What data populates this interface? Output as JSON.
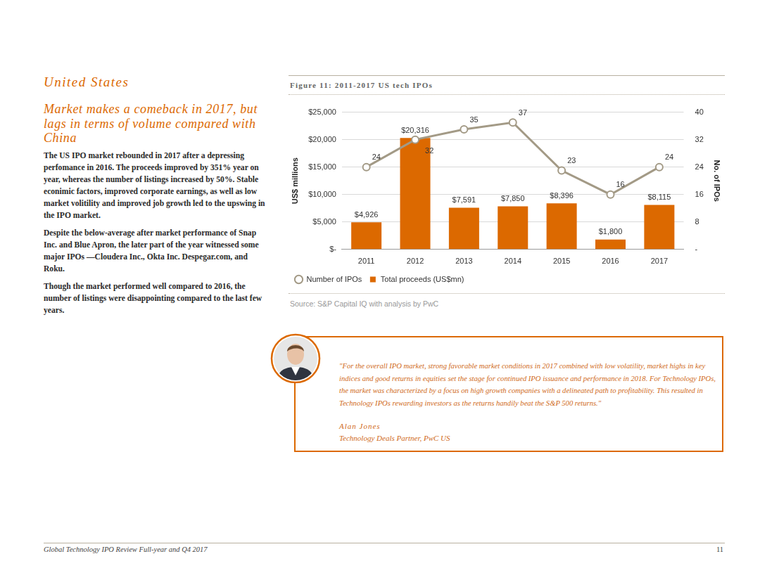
{
  "section": {
    "title": "United States",
    "headline": "Market makes a comeback in 2017, but lags in terms of volume compared with China",
    "paragraphs": [
      "The US IPO market rebounded in 2017 after a depressing perfomance in 2016. The proceeds improved by 351% year on year, whereas the number of listings increased by 50%. Stable econimic factors, improved corporate earnings, as well as low market volitility and improved job growth led to the upswing in the IPO market.",
      "Despite the below-average after market performance of Snap Inc. and Blue Apron, the later part of the year witnessed some major IPOs —Cloudera Inc., Okta Inc. Despegar.com, and Roku.",
      "Though the market performed well compared to 2016, the number of listings were disappointing compared to the last few years."
    ]
  },
  "chart_data": {
    "type": "bar",
    "title": "Figure 11: 2011-2017 US tech IPOs",
    "source": "Source: S&P Capital IQ with analysis by PwC",
    "categories": [
      "2011",
      "2012",
      "2013",
      "2014",
      "2015",
      "2016",
      "2017"
    ],
    "series": [
      {
        "name": "Total proceeds (US$mn)",
        "type": "bar",
        "color": "#dc6900",
        "values": [
          4926,
          20316,
          7591,
          7850,
          8396,
          1800,
          8115
        ],
        "value_labels": [
          "$4,926",
          "$20,316",
          "$7,591",
          "$7,850",
          "$8,396",
          "$1,800",
          "$8,115"
        ]
      },
      {
        "name": "Number of IPOs",
        "type": "line",
        "color": "#a39a86",
        "marker": "circle",
        "axis": "y2",
        "values": [
          24,
          32,
          35,
          37,
          23,
          16,
          24
        ]
      }
    ],
    "y_label": "US$ millions",
    "y2_label": "No. of IPOs",
    "ylim": [
      0,
      25000
    ],
    "yticks": [
      {
        "value": 0,
        "label": "$-"
      },
      {
        "value": 5000,
        "label": "$5,000"
      },
      {
        "value": 10000,
        "label": "$10,000"
      },
      {
        "value": 15000,
        "label": "$15,000"
      },
      {
        "value": 20000,
        "label": "$20,000"
      },
      {
        "value": 25000,
        "label": "$25,000"
      }
    ],
    "y2lim": [
      0,
      40
    ],
    "y2ticks": [
      {
        "value": 0,
        "label": "-"
      },
      8,
      16,
      24,
      32,
      40
    ],
    "grid": true,
    "legend": "bottom",
    "data_labels": true
  },
  "quote": {
    "text": "\"For the overall IPO market, strong favorable market conditions in 2017 combined with low volatility, market highs in key indices and good returns in equities set the stage for continued IPO issuance and performance in 2018.  For Technology IPOs, the market was characterized by a focus on high growth companies with a delineated path to profitability. This resulted in Technology IPOs rewarding investors as the returns handily beat the S&P 500 returns.\"",
    "name": "Alan Jones",
    "role": "Technology Deals Partner, PwC US"
  },
  "footer": {
    "title": "Global Technology IPO Review Full-year and Q4 2017",
    "page": 11
  }
}
